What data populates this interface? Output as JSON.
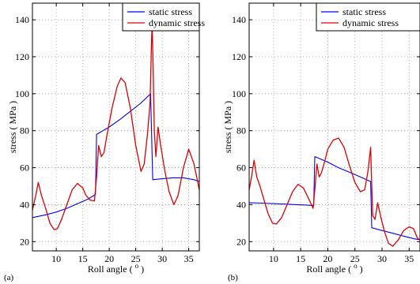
{
  "colors": {
    "static": "#0000ff",
    "dynamic": "#e00000",
    "grid": "#999999",
    "axis": "#000000"
  },
  "chart_data": [
    {
      "type": "line",
      "panel_label": "(a)",
      "xlabel": "Roll angle (",
      "xlabel_sup": "o",
      "xlabel_tail": ")",
      "ylabel": "stress ( MPa )",
      "xlim": [
        5.5,
        37
      ],
      "ylim": [
        15,
        149
      ],
      "xticks": [
        10,
        15,
        20,
        25,
        30,
        35
      ],
      "yticks": [
        20,
        40,
        60,
        80,
        100,
        120,
        140
      ],
      "grid": true,
      "legend_position": "top-right",
      "series": [
        {
          "name": "static stress",
          "color": "#0000ff",
          "x": [
            5.5,
            8,
            10,
            12,
            14,
            16,
            17.4,
            17.6,
            20,
            22,
            24,
            26,
            27.8,
            28.2,
            30,
            32,
            34,
            36,
            37
          ],
          "y": [
            33,
            34.5,
            36,
            38,
            40.5,
            43,
            45.5,
            78,
            82,
            86,
            90.5,
            95,
            100,
            53.5,
            54,
            54.5,
            54.5,
            53.5,
            52.5
          ]
        },
        {
          "name": "dynamic stress",
          "color": "#e00000",
          "x": [
            5.5,
            6.2,
            6.6,
            7.2,
            8,
            8.8,
            9.6,
            10.2,
            11,
            12,
            13,
            14,
            15,
            15.6,
            16.4,
            17.2,
            17.6,
            18.0,
            18.5,
            19.0,
            19.6,
            20.5,
            21.5,
            22.2,
            23.0,
            24.0,
            25.0,
            26.0,
            26.6,
            27.2,
            27.7,
            28.0,
            28.1,
            28.3,
            28.5,
            28.8,
            29.2,
            29.7,
            30.5,
            31.3,
            32.2,
            33.0,
            34.0,
            35.0,
            36.0,
            37.0
          ],
          "y": [
            37,
            46,
            52,
            45,
            38,
            30,
            26.5,
            27,
            32,
            40,
            48,
            51.5,
            49,
            45,
            42.5,
            42,
            55,
            72,
            66,
            68,
            78,
            92,
            104,
            108.5,
            106,
            92,
            72,
            58,
            62,
            78,
            95,
            130,
            138,
            112,
            80,
            66,
            82,
            72,
            58,
            47,
            40,
            45,
            60,
            70,
            62,
            48
          ]
        }
      ]
    },
    {
      "type": "line",
      "panel_label": "(b)",
      "xlabel": "Roll angle (",
      "xlabel_sup": "o",
      "xlabel_tail": ")",
      "ylabel": "stress ( MPa )",
      "xlim": [
        5.5,
        37
      ],
      "ylim": [
        15,
        149
      ],
      "xticks": [
        10,
        15,
        20,
        25,
        30,
        35
      ],
      "yticks": [
        20,
        40,
        60,
        80,
        100,
        120,
        140
      ],
      "grid": true,
      "legend_position": "top-right",
      "series": [
        {
          "name": "static stress",
          "color": "#0000ff",
          "x": [
            5.5,
            8,
            10,
            12,
            14,
            16,
            17.4,
            17.6,
            20,
            22,
            24,
            26,
            27.9,
            28.1,
            30,
            32,
            34,
            36,
            37
          ],
          "y": [
            41,
            40.8,
            40.5,
            40.3,
            40,
            39.8,
            39.5,
            66,
            63,
            60,
            57.5,
            55,
            52.5,
            27.5,
            26,
            24.5,
            23,
            21.5,
            21
          ]
        },
        {
          "name": "dynamic stress",
          "color": "#e00000",
          "x": [
            5.5,
            6.0,
            6.4,
            6.9,
            7.5,
            8.2,
            9.0,
            9.8,
            10.5,
            11.5,
            12.5,
            13.5,
            14.5,
            15.5,
            16.5,
            17.3,
            17.6,
            18.0,
            18.4,
            18.8,
            19.3,
            20.0,
            21.0,
            22.0,
            23.0,
            24.0,
            25.0,
            26.0,
            26.8,
            27.4,
            27.9,
            28.1,
            28.3,
            28.7,
            29.2,
            29.8,
            30.5,
            31.2,
            32.0,
            33.0,
            34.0,
            35.0,
            35.8,
            36.5,
            37.0
          ],
          "y": [
            48,
            56,
            64,
            55,
            50,
            43,
            35,
            30,
            29.5,
            33,
            40,
            47,
            51,
            49,
            43,
            38,
            48,
            62,
            55,
            57,
            62,
            70,
            75,
            76,
            71,
            61,
            52,
            47,
            48,
            58,
            71,
            50,
            34,
            32,
            41,
            33,
            25,
            19,
            17.5,
            21,
            26,
            28,
            27,
            22,
            21
          ]
        }
      ]
    }
  ]
}
